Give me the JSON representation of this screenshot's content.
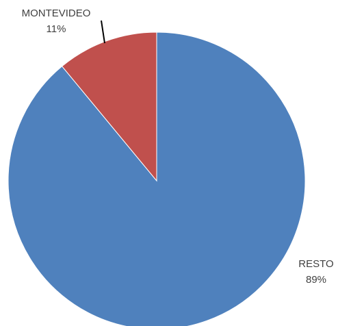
{
  "chart_data": {
    "type": "pie",
    "categories": [
      "RESTO",
      "MONTEVIDEO"
    ],
    "values": [
      89,
      11
    ],
    "value_labels": [
      "89%",
      "11%"
    ],
    "colors": [
      "#4f81bd",
      "#c0504d"
    ]
  }
}
